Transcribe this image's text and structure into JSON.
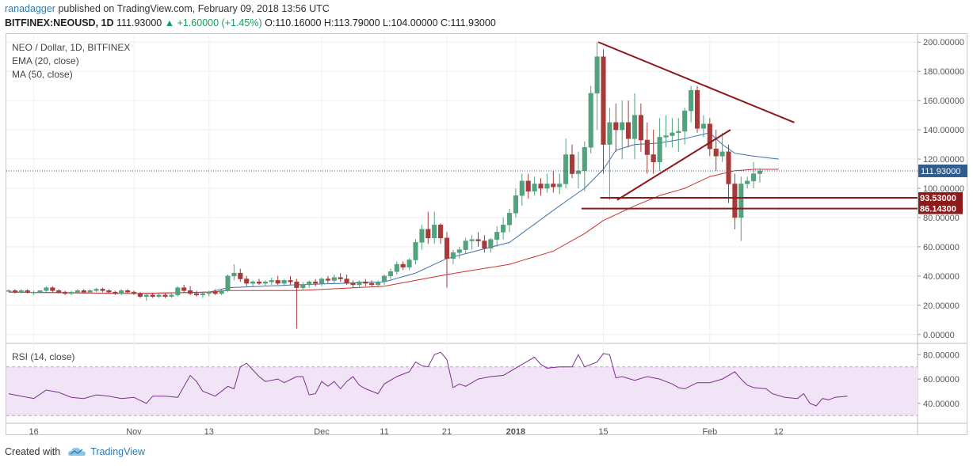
{
  "header": {
    "user": "ranadagger",
    "published_text": "published on TradingView.com, February 09, 2018 13:56 UTC",
    "symbol": "BITFINEX:NEOUSD, 1D",
    "last": "111.93000",
    "change": "+1.60000 (+1.45%)",
    "ohlc": "O:110.16000 H:113.79000 L:104.00000 C:111.93000"
  },
  "legend": {
    "title": "NEO / Dollar, 1D, BITFINEX",
    "ema": "EMA (20, close)",
    "ma": "MA (50, close)"
  },
  "rsi_label": "RSI (14, close)",
  "footer": {
    "created_with": "Created with",
    "brand": "TradingView"
  },
  "colors": {
    "up": "#53a27e",
    "down": "#a63a3a",
    "ema": "#3f6fb0",
    "ma": "#c93232",
    "trendline": "#8b1a1a",
    "rsi_line": "#7d2f8e",
    "rsi_band": "#f1e4f6",
    "price_badge": "#2f5c8c",
    "level_badge": "#8b1a1a"
  },
  "chart_data": {
    "type": "candlestick",
    "ylim": [
      -5,
      205
    ],
    "yticks": [
      "200.00000",
      "180.00000",
      "160.00000",
      "140.00000",
      "120.00000",
      "100.00000",
      "80.00000",
      "60.00000",
      "40.00000",
      "20.00000",
      "0.00000"
    ],
    "xticks": [
      {
        "label": "16",
        "index": 4
      },
      {
        "label": "Nov",
        "index": 20
      },
      {
        "label": "13",
        "index": 32
      },
      {
        "label": "Dec",
        "index": 50
      },
      {
        "label": "11",
        "index": 60
      },
      {
        "label": "21",
        "index": 70
      },
      {
        "label": "2018",
        "index": 81
      },
      {
        "label": "15",
        "index": 95
      },
      {
        "label": "Feb",
        "index": 112
      },
      {
        "label": "12",
        "index": 123
      }
    ],
    "last_price": {
      "label": "111.93000",
      "value": 111.93
    },
    "levels": [
      {
        "label": "93.53000",
        "value": 93.53
      },
      {
        "label": "86.14300",
        "value": 86.143
      }
    ],
    "trendlines": [
      {
        "from": [
          94.2,
          200
        ],
        "to": [
          125.5,
          145
        ]
      },
      {
        "from": [
          97.2,
          92
        ],
        "to": [
          115.3,
          140
        ]
      }
    ],
    "candles": [
      [
        30,
        31,
        29,
        30
      ],
      [
        30,
        31,
        28,
        29
      ],
      [
        29,
        31,
        28,
        30
      ],
      [
        30,
        31,
        28,
        29
      ],
      [
        29,
        30,
        27,
        29
      ],
      [
        29,
        30,
        28,
        30
      ],
      [
        30,
        33,
        29,
        32
      ],
      [
        32,
        33,
        29,
        30
      ],
      [
        30,
        31,
        28,
        29
      ],
      [
        29,
        30,
        27,
        28
      ],
      [
        28,
        30,
        27,
        29
      ],
      [
        29,
        31,
        28,
        30
      ],
      [
        30,
        31,
        28,
        29
      ],
      [
        29,
        31,
        28,
        30
      ],
      [
        30,
        32,
        29,
        31
      ],
      [
        31,
        32,
        29,
        30
      ],
      [
        30,
        31,
        28,
        29
      ],
      [
        29,
        30,
        27,
        28
      ],
      [
        28,
        31,
        27,
        30
      ],
      [
        30,
        31,
        28,
        29
      ],
      [
        29,
        30,
        27,
        28
      ],
      [
        28,
        29,
        25,
        26
      ],
      [
        26,
        28,
        23,
        27
      ],
      [
        27,
        28,
        25,
        26
      ],
      [
        26,
        28,
        25,
        27
      ],
      [
        27,
        28,
        25,
        26
      ],
      [
        26,
        28,
        25,
        27
      ],
      [
        27,
        33,
        26,
        32
      ],
      [
        32,
        34,
        29,
        30
      ],
      [
        30,
        33,
        27,
        28
      ],
      [
        28,
        30,
        26,
        27
      ],
      [
        27,
        29,
        25,
        28
      ],
      [
        28,
        30,
        26,
        29
      ],
      [
        29,
        31,
        27,
        28
      ],
      [
        28,
        31,
        27,
        30
      ],
      [
        30,
        41,
        29,
        40
      ],
      [
        40,
        48,
        37,
        42
      ],
      [
        42,
        45,
        36,
        38
      ],
      [
        38,
        40,
        33,
        35
      ],
      [
        35,
        37,
        33,
        36
      ],
      [
        36,
        38,
        34,
        35
      ],
      [
        35,
        37,
        33,
        36
      ],
      [
        36,
        39,
        34,
        37
      ],
      [
        37,
        40,
        34,
        35
      ],
      [
        35,
        38,
        33,
        37
      ],
      [
        37,
        40,
        34,
        36
      ],
      [
        36,
        38,
        4,
        32
      ],
      [
        32,
        36,
        30,
        34
      ],
      [
        34,
        37,
        32,
        36
      ],
      [
        36,
        38,
        33,
        35
      ],
      [
        35,
        39,
        33,
        38
      ],
      [
        38,
        40,
        35,
        37
      ],
      [
        37,
        41,
        35,
        39
      ],
      [
        39,
        42,
        36,
        38
      ],
      [
        38,
        41,
        34,
        35
      ],
      [
        35,
        37,
        32,
        34
      ],
      [
        34,
        37,
        32,
        36
      ],
      [
        36,
        38,
        33,
        35
      ],
      [
        35,
        37,
        33,
        34
      ],
      [
        34,
        37,
        32,
        36
      ],
      [
        36,
        41,
        34,
        40
      ],
      [
        40,
        45,
        38,
        43
      ],
      [
        43,
        50,
        41,
        48
      ],
      [
        48,
        50,
        44,
        46
      ],
      [
        46,
        52,
        44,
        51
      ],
      [
        51,
        65,
        48,
        63
      ],
      [
        63,
        75,
        58,
        72
      ],
      [
        72,
        84,
        62,
        66
      ],
      [
        66,
        84,
        62,
        75
      ],
      [
        75,
        76,
        62,
        66
      ],
      [
        66,
        70,
        32,
        52
      ],
      [
        52,
        58,
        48,
        56
      ],
      [
        56,
        60,
        52,
        58
      ],
      [
        58,
        66,
        55,
        64
      ],
      [
        64,
        68,
        58,
        65
      ],
      [
        65,
        70,
        60,
        64
      ],
      [
        64,
        68,
        56,
        59
      ],
      [
        59,
        66,
        56,
        65
      ],
      [
        65,
        74,
        60,
        70
      ],
      [
        70,
        80,
        65,
        75
      ],
      [
        75,
        86,
        70,
        83
      ],
      [
        83,
        100,
        80,
        95
      ],
      [
        95,
        110,
        88,
        105
      ],
      [
        105,
        110,
        93,
        98
      ],
      [
        98,
        108,
        95,
        103
      ],
      [
        103,
        107,
        95,
        100
      ],
      [
        100,
        110,
        97,
        103
      ],
      [
        103,
        112,
        97,
        101
      ],
      [
        101,
        110,
        96,
        103
      ],
      [
        103,
        134,
        100,
        123
      ],
      [
        123,
        130,
        107,
        110
      ],
      [
        110,
        125,
        100,
        112
      ],
      [
        112,
        132,
        98,
        128
      ],
      [
        128,
        170,
        124,
        165
      ],
      [
        165,
        200,
        140,
        190
      ],
      [
        190,
        195,
        110,
        130
      ],
      [
        130,
        155,
        92,
        145
      ],
      [
        145,
        158,
        125,
        140
      ],
      [
        140,
        160,
        120,
        145
      ],
      [
        145,
        160,
        128,
        134
      ],
      [
        134,
        165,
        120,
        150
      ],
      [
        150,
        158,
        125,
        133
      ],
      [
        133,
        145,
        110,
        123
      ],
      [
        123,
        140,
        110,
        118
      ],
      [
        118,
        148,
        112,
        135
      ],
      [
        135,
        150,
        128,
        136
      ],
      [
        136,
        148,
        128,
        138
      ],
      [
        138,
        148,
        125,
        139
      ],
      [
        139,
        155,
        130,
        153
      ],
      [
        153,
        170,
        145,
        167
      ],
      [
        167,
        170,
        138,
        141
      ],
      [
        141,
        150,
        135,
        144
      ],
      [
        144,
        148,
        122,
        127
      ],
      [
        127,
        140,
        112,
        122
      ],
      [
        122,
        138,
        118,
        125
      ],
      [
        125,
        130,
        90,
        103
      ],
      [
        103,
        110,
        72,
        80
      ],
      [
        80,
        108,
        64,
        103
      ],
      [
        103,
        108,
        100,
        105
      ],
      [
        105,
        118,
        100,
        110
      ],
      [
        110,
        113.79,
        104,
        111.93
      ]
    ],
    "ema20_anchors": [
      [
        0,
        29
      ],
      [
        20,
        28
      ],
      [
        32,
        29
      ],
      [
        35,
        32
      ],
      [
        46,
        34
      ],
      [
        60,
        36
      ],
      [
        65,
        42
      ],
      [
        70,
        52
      ],
      [
        80,
        63
      ],
      [
        88,
        88
      ],
      [
        92,
        100
      ],
      [
        95,
        113
      ],
      [
        97,
        126
      ],
      [
        100,
        130
      ],
      [
        104,
        131
      ],
      [
        108,
        134
      ],
      [
        112,
        138
      ],
      [
        114,
        130
      ],
      [
        116,
        124
      ],
      [
        119,
        122
      ],
      [
        123,
        120
      ]
    ],
    "ma50_anchors": [
      [
        0,
        29
      ],
      [
        20,
        28
      ],
      [
        32,
        29
      ],
      [
        35,
        30
      ],
      [
        46,
        30
      ],
      [
        60,
        33
      ],
      [
        65,
        37
      ],
      [
        70,
        41
      ],
      [
        80,
        48
      ],
      [
        87,
        57
      ],
      [
        92,
        69
      ],
      [
        95,
        78
      ],
      [
        100,
        88
      ],
      [
        104,
        95
      ],
      [
        108,
        100
      ],
      [
        112,
        108
      ],
      [
        116,
        112
      ],
      [
        119,
        113
      ],
      [
        123,
        113
      ]
    ],
    "rsi": {
      "ylim": [
        25,
        88
      ],
      "yticks": [
        "80.00000",
        "60.00000",
        "40.00000"
      ],
      "band": [
        30,
        70
      ],
      "values": [
        [
          0,
          48
        ],
        [
          2,
          46
        ],
        [
          4,
          44
        ],
        [
          6,
          51
        ],
        [
          8,
          49
        ],
        [
          10,
          45
        ],
        [
          12,
          44
        ],
        [
          14,
          47
        ],
        [
          16,
          46
        ],
        [
          18,
          44
        ],
        [
          20,
          45
        ],
        [
          22,
          40
        ],
        [
          23,
          46
        ],
        [
          25,
          46
        ],
        [
          27,
          45
        ],
        [
          29,
          63
        ],
        [
          30,
          58
        ],
        [
          31,
          50
        ],
        [
          33,
          46
        ],
        [
          35,
          54
        ],
        [
          36,
          52
        ],
        [
          37,
          70
        ],
        [
          38,
          73
        ],
        [
          40,
          62
        ],
        [
          41,
          58
        ],
        [
          43,
          60
        ],
        [
          44,
          57
        ],
        [
          46,
          62
        ],
        [
          47,
          62
        ],
        [
          48,
          47
        ],
        [
          49,
          48
        ],
        [
          50,
          58
        ],
        [
          51,
          54
        ],
        [
          52,
          58
        ],
        [
          53,
          52
        ],
        [
          54,
          58
        ],
        [
          55,
          62
        ],
        [
          56,
          55
        ],
        [
          57,
          52
        ],
        [
          58,
          50
        ],
        [
          59,
          48
        ],
        [
          60,
          56
        ],
        [
          62,
          62
        ],
        [
          64,
          66
        ],
        [
          65,
          74
        ],
        [
          66,
          71
        ],
        [
          67,
          70
        ],
        [
          68,
          80
        ],
        [
          69,
          82
        ],
        [
          70,
          76
        ],
        [
          71,
          53
        ],
        [
          72,
          56
        ],
        [
          73,
          54
        ],
        [
          75,
          60
        ],
        [
          77,
          62
        ],
        [
          79,
          63
        ],
        [
          80,
          66
        ],
        [
          82,
          72
        ],
        [
          84,
          78
        ],
        [
          85,
          72
        ],
        [
          86,
          69
        ],
        [
          88,
          70
        ],
        [
          90,
          70
        ],
        [
          91,
          80
        ],
        [
          92,
          70
        ],
        [
          94,
          74
        ],
        [
          95,
          81
        ],
        [
          96,
          80
        ],
        [
          97,
          61
        ],
        [
          98,
          62
        ],
        [
          100,
          59
        ],
        [
          102,
          62
        ],
        [
          104,
          60
        ],
        [
          106,
          56
        ],
        [
          107,
          53
        ],
        [
          108,
          52
        ],
        [
          110,
          57
        ],
        [
          112,
          57
        ],
        [
          114,
          60
        ],
        [
          116,
          66
        ],
        [
          117,
          60
        ],
        [
          118,
          55
        ],
        [
          119,
          53
        ],
        [
          121,
          52
        ],
        [
          122,
          48
        ],
        [
          124,
          45
        ],
        [
          126,
          44
        ],
        [
          127,
          48
        ],
        [
          128,
          40
        ],
        [
          129,
          38
        ],
        [
          130,
          44
        ],
        [
          131,
          43
        ],
        [
          132,
          45
        ],
        [
          134,
          46
        ]
      ]
    }
  }
}
